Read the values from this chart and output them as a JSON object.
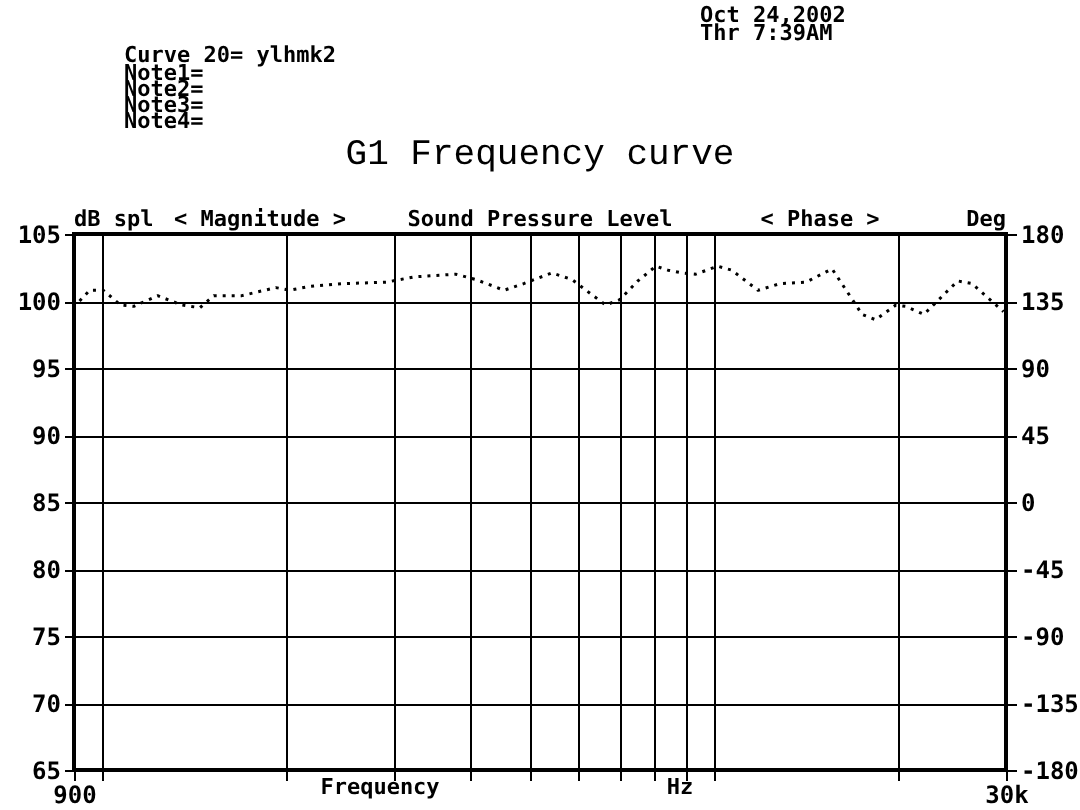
{
  "chart_data": {
    "type": "line",
    "title": "G1 Frequency curve",
    "xlabel": "Frequency",
    "ylabel": "dB spl",
    "y2label": "Deg",
    "annotations": [
      "Oct 24,2002",
      "Thr  7:39AM",
      "Curve 20= ylhmk2",
      "Note1=",
      "Note2=",
      "Note3=",
      "Note4=",
      "< Magnitude >",
      "Sound Pressure Level",
      "< Phase >",
      "Hz"
    ],
    "x": [
      919,
      955,
      1005,
      1072,
      1127,
      1233,
      1349,
      1445,
      1523,
      1693,
      1923,
      2028,
      2188,
      2485,
      2911,
      3236,
      3785,
      4083,
      4539,
      4888,
      5433,
      5861,
      6180,
      6653,
      7015,
      7510,
      8035,
      8410,
      8851,
      9333,
      10140,
      10690,
      11800,
      12820,
      14130,
      15590,
      17460,
      18370,
      19820,
      20570,
      22030,
      23770,
      25020,
      26380,
      29720
    ],
    "series": [
      {
        "color": "#000000",
        "values": [
          100.0,
          100.8,
          100.8,
          99.7,
          99.6,
          100.4,
          99.7,
          99.5,
          100.4,
          100.4,
          101.0,
          100.8,
          101.1,
          101.3,
          101.4,
          101.8,
          102.0,
          101.6,
          100.8,
          101.3,
          102.1,
          101.6,
          100.8,
          99.7,
          100.1,
          101.5,
          102.6,
          102.3,
          102.1,
          102.0,
          102.6,
          102.3,
          100.8,
          101.3,
          101.4,
          102.4,
          99.0,
          98.6,
          99.7,
          99.6,
          99.0,
          100.5,
          101.5,
          101.3,
          99.2
        ]
      }
    ],
    "log": "x",
    "xlim": [
      900,
      30000
    ],
    "xticks": [
      {
        "value": 900,
        "label": "900"
      },
      {
        "value": 1000,
        "label": null
      },
      {
        "value": 2000,
        "label": null
      },
      {
        "value": 3000,
        "label": null
      },
      {
        "value": 4000,
        "label": null
      },
      {
        "value": 5000,
        "label": null
      },
      {
        "value": 6000,
        "label": null
      },
      {
        "value": 7000,
        "label": null
      },
      {
        "value": 8000,
        "label": null
      },
      {
        "value": 9000,
        "label": null
      },
      {
        "value": 10000,
        "label": null
      },
      {
        "value": 20000,
        "label": null
      },
      {
        "value": 30000,
        "label": "30k"
      }
    ],
    "ylim": [
      65,
      105
    ],
    "yticks": [
      65,
      70,
      75,
      80,
      85,
      90,
      95,
      100,
      105
    ],
    "y2lim": [
      -180,
      180
    ],
    "y2ticks": [
      -180,
      -135,
      -90,
      -45,
      0,
      45,
      90,
      135,
      180
    ],
    "grid": true,
    "marker": "none",
    "line_style": "dotted"
  }
}
